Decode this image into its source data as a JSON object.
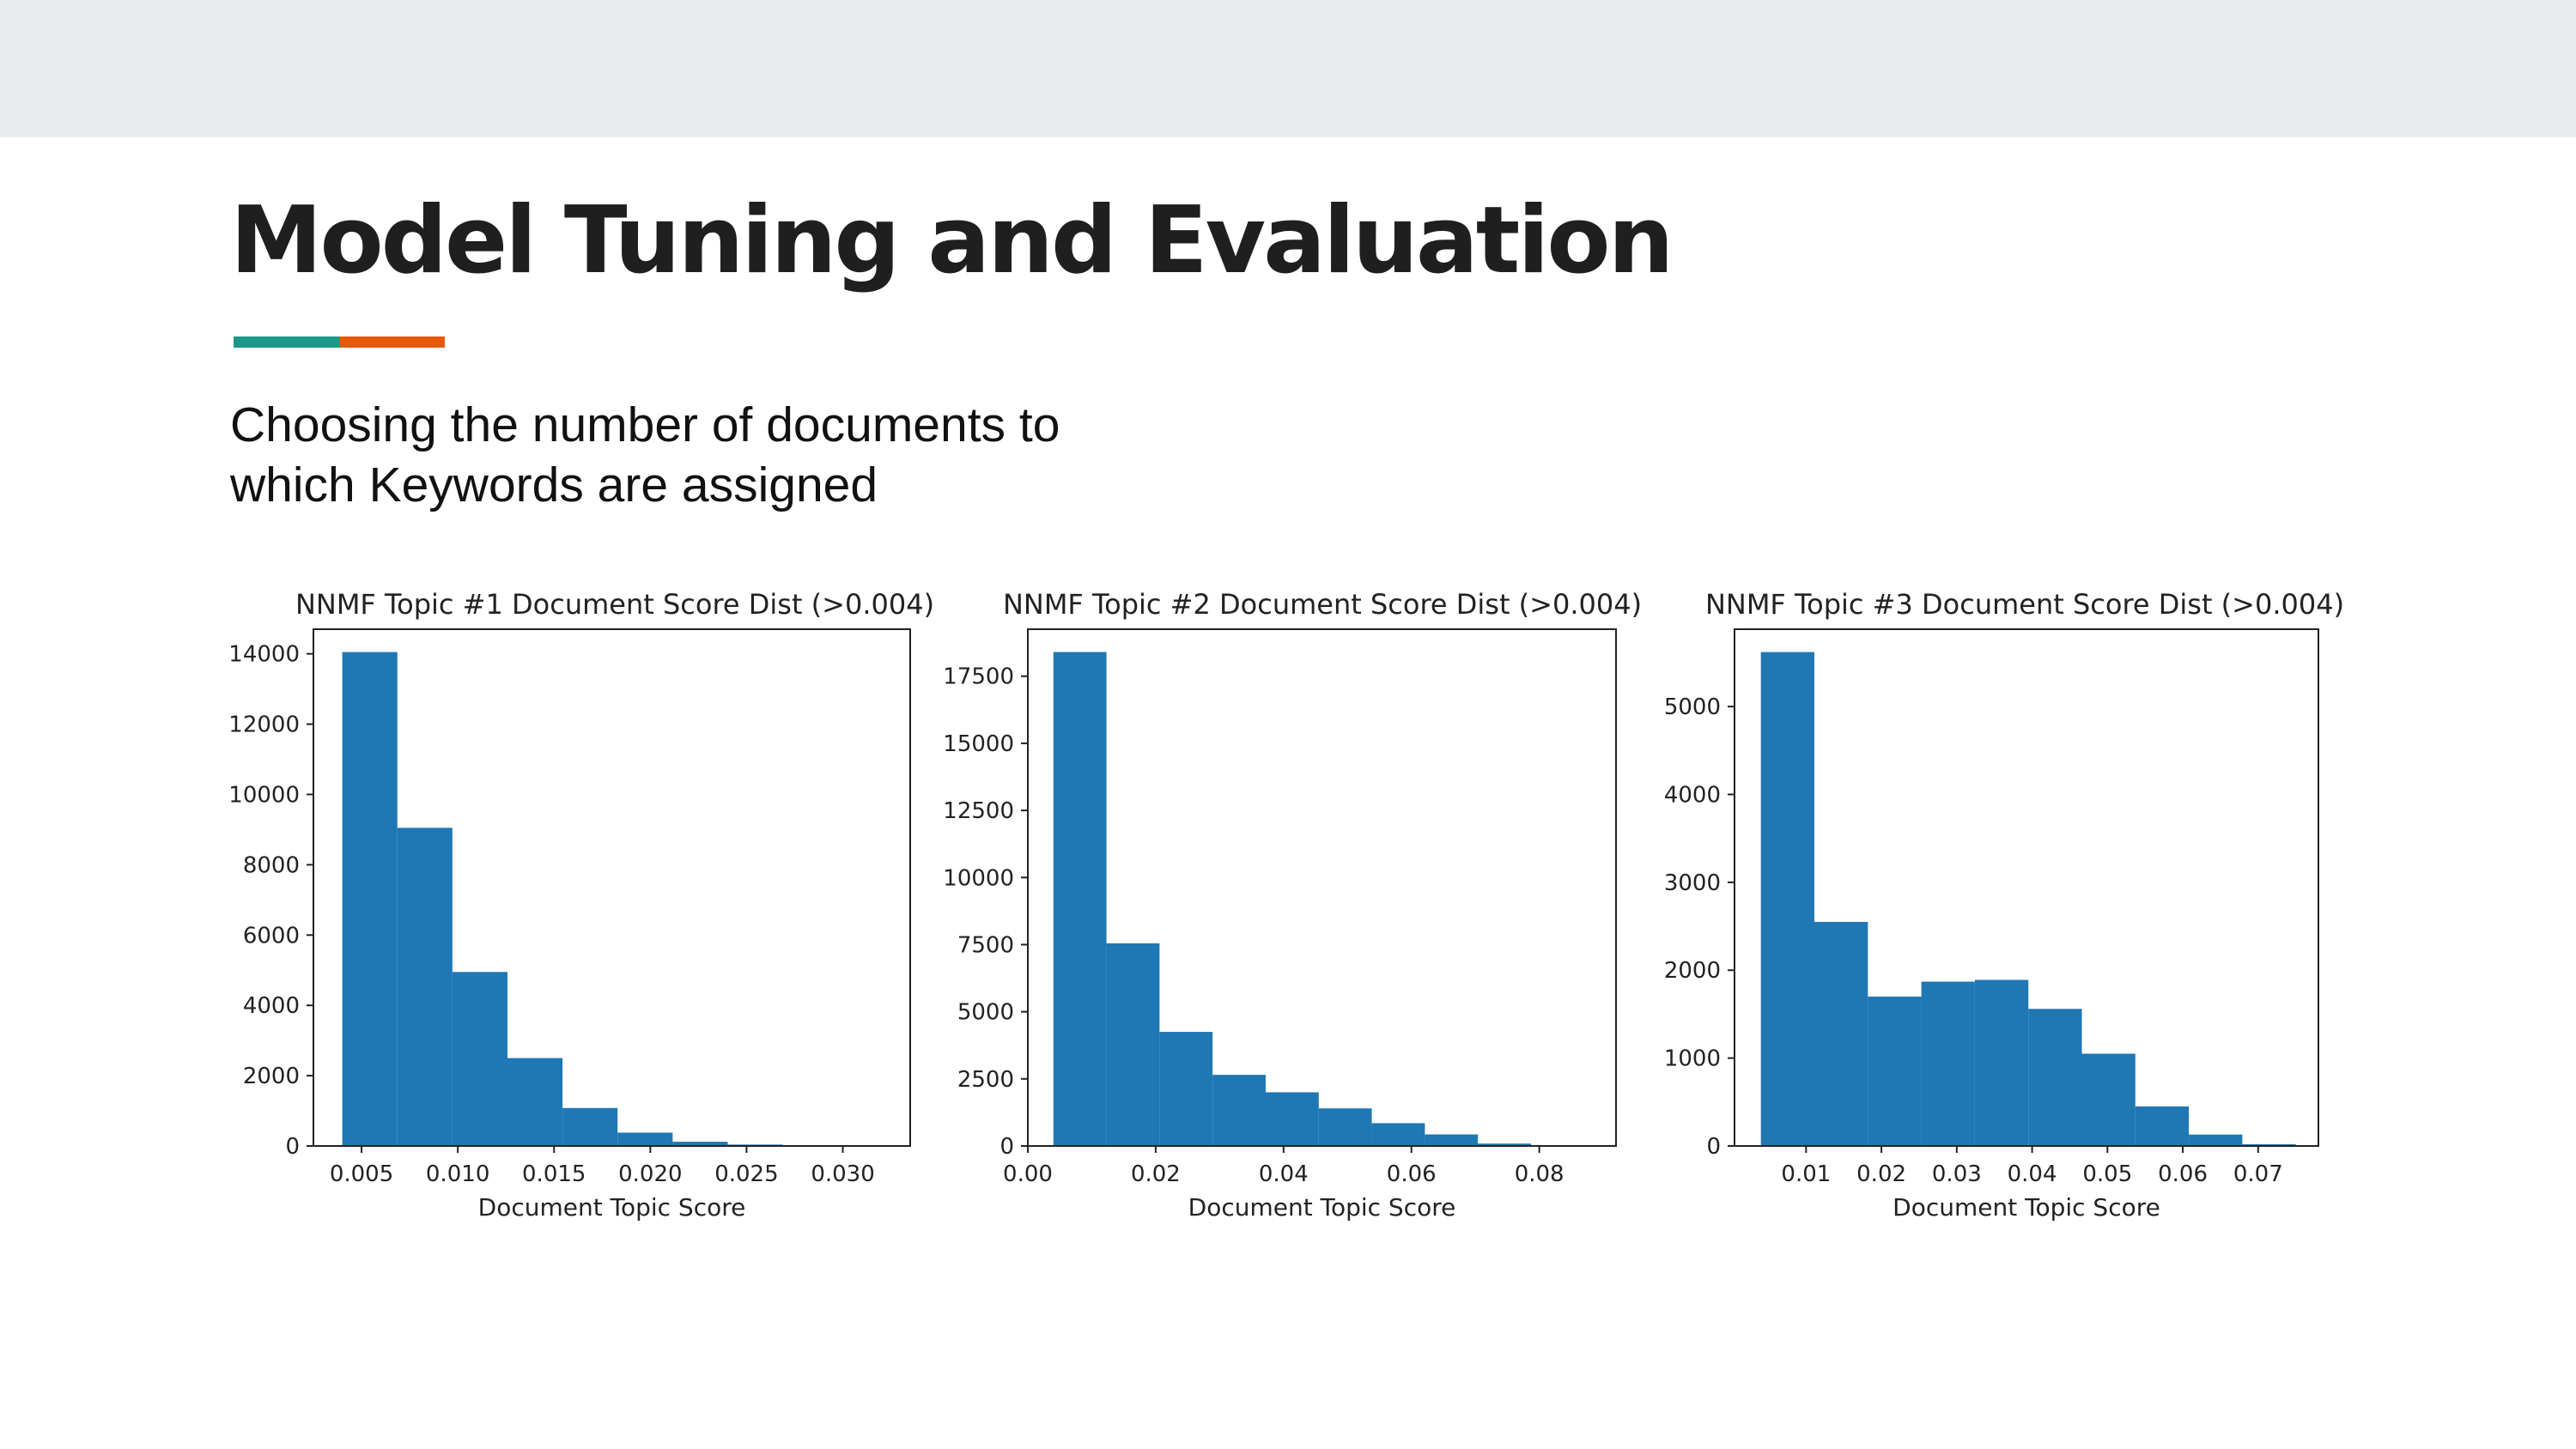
{
  "slide": {
    "title": "Model Tuning and Evaluation",
    "subtitle_lines": [
      "Choosing the number of documents to",
      "which Keywords are assigned"
    ],
    "colors": {
      "top_band": "#e8ecee",
      "accent_teal": "#1a9988",
      "accent_orange": "#e8590c",
      "bar": "#1f77b4"
    }
  },
  "chart_data": [
    {
      "type": "bar",
      "title": "NNMF Topic #1 Document Score Dist (>0.004)",
      "xlabel": "Document Topic Score",
      "ylabel": "",
      "xlim": [
        0.0025,
        0.0335
      ],
      "ylim": [
        0,
        14700
      ],
      "bin_edges": [
        0.004,
        0.00686,
        0.00972,
        0.01258,
        0.01544,
        0.0183,
        0.02116,
        0.02402,
        0.02688,
        0.02974,
        0.0326
      ],
      "values": [
        14050,
        9050,
        4950,
        2500,
        1080,
        380,
        120,
        40,
        10,
        3
      ],
      "xticks": [
        0.005,
        0.01,
        0.015,
        0.02,
        0.025,
        0.03
      ],
      "xtick_labels": [
        "0.005",
        "0.010",
        "0.015",
        "0.020",
        "0.025",
        "0.030"
      ],
      "yticks": [
        0,
        2000,
        4000,
        6000,
        8000,
        10000,
        12000,
        14000
      ],
      "ytick_labels": [
        "0",
        "2000",
        "4000",
        "6000",
        "8000",
        "10000",
        "12000",
        "14000"
      ]
    },
    {
      "type": "bar",
      "title": "NNMF Topic #2 Document Score Dist (>0.004)",
      "xlabel": "Document Topic Score",
      "ylabel": "",
      "xlim": [
        0.0,
        0.092
      ],
      "ylim": [
        0,
        19250
      ],
      "bin_edges": [
        0.004,
        0.0123,
        0.0206,
        0.0289,
        0.0372,
        0.0455,
        0.0538,
        0.0621,
        0.0704,
        0.0787,
        0.087
      ],
      "values": [
        18400,
        7550,
        4250,
        2650,
        2000,
        1400,
        850,
        430,
        90,
        15
      ],
      "xticks": [
        0.0,
        0.02,
        0.04,
        0.06,
        0.08
      ],
      "xtick_labels": [
        "0.00",
        "0.02",
        "0.04",
        "0.06",
        "0.08"
      ],
      "yticks": [
        0,
        2500,
        5000,
        7500,
        10000,
        12500,
        15000,
        17500
      ],
      "ytick_labels": [
        "0",
        "2500",
        "5000",
        "7500",
        "10000",
        "12500",
        "15000",
        "17500"
      ]
    },
    {
      "type": "bar",
      "title": "NNMF Topic #3 Document Score Dist (>0.004)",
      "xlabel": "Document Topic Score",
      "ylabel": "",
      "xlim": [
        0.0005,
        0.078
      ],
      "ylim": [
        0,
        5880
      ],
      "bin_edges": [
        0.004,
        0.0111,
        0.0182,
        0.0253,
        0.0324,
        0.0395,
        0.0466,
        0.0537,
        0.0608,
        0.0679,
        0.075
      ],
      "values": [
        5620,
        2550,
        1700,
        1870,
        1890,
        1560,
        1050,
        450,
        130,
        20
      ],
      "xticks": [
        0.01,
        0.02,
        0.03,
        0.04,
        0.05,
        0.06,
        0.07
      ],
      "xtick_labels": [
        "0.01",
        "0.02",
        "0.03",
        "0.04",
        "0.05",
        "0.06",
        "0.07"
      ],
      "yticks": [
        0,
        1000,
        2000,
        3000,
        4000,
        5000
      ],
      "ytick_labels": [
        "0",
        "1000",
        "2000",
        "3000",
        "4000",
        "5000"
      ]
    }
  ]
}
